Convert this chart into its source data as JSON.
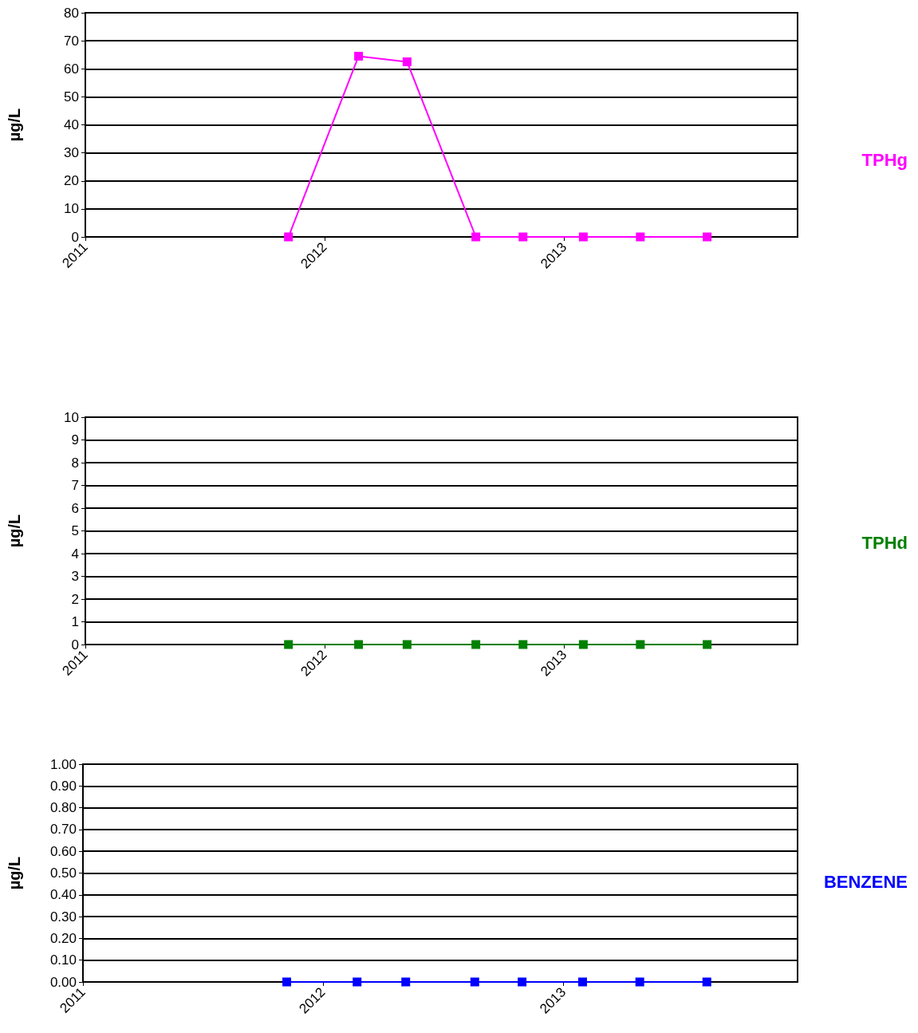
{
  "chart_data": [
    {
      "type": "line",
      "ylabel": "µg/L",
      "x": [
        "2011-11-07",
        "2012-02-22",
        "2012-05-06",
        "2012-08-19",
        "2012-10-30",
        "2013-01-30",
        "2013-04-27",
        "2013-08-07"
      ],
      "series": [
        {
          "name": "TPHg",
          "color": "#ff00ff",
          "values": [
            0,
            64.5,
            62.5,
            0,
            0,
            0,
            0,
            0
          ]
        }
      ],
      "xlim": [
        "2011-01-01",
        "2013-12-23"
      ],
      "xticks": [
        {
          "value": "2011",
          "label": "2011"
        },
        {
          "value": "2012",
          "label": "2012"
        },
        {
          "value": "2013",
          "label": "2013"
        }
      ],
      "ylim": [
        0,
        80
      ],
      "yticks": [
        0,
        10,
        20,
        30,
        40,
        50,
        60,
        70,
        80
      ],
      "grid": "y",
      "legend": "right",
      "marker": "square",
      "line_style": "solid"
    },
    {
      "type": "line",
      "ylabel": "µg/L",
      "x": [
        "2011-11-07",
        "2012-02-22",
        "2012-05-06",
        "2012-08-19",
        "2012-10-30",
        "2013-01-30",
        "2013-04-27",
        "2013-08-07"
      ],
      "series": [
        {
          "name": "TPHd",
          "color": "#008000",
          "values": [
            0,
            0,
            0,
            0,
            0,
            0,
            0,
            0
          ]
        }
      ],
      "xlim": [
        "2011-01-01",
        "2013-12-23"
      ],
      "xticks": [
        {
          "value": "2011",
          "label": "2011"
        },
        {
          "value": "2012",
          "label": "2012"
        },
        {
          "value": "2013",
          "label": "2013"
        }
      ],
      "ylim": [
        0,
        10
      ],
      "yticks": [
        0,
        1,
        2,
        3,
        4,
        5,
        6,
        7,
        8,
        9,
        10
      ],
      "grid": "y",
      "legend": "right",
      "marker": "square",
      "line_style": "solid"
    },
    {
      "type": "line",
      "ylabel": "µg/L",
      "x": [
        "2011-11-07",
        "2012-02-22",
        "2012-05-06",
        "2012-08-19",
        "2012-10-30",
        "2013-01-30",
        "2013-04-27",
        "2013-08-07"
      ],
      "series": [
        {
          "name": "BENZENE",
          "color": "#0000ff",
          "values": [
            0,
            0,
            0,
            0,
            0,
            0,
            0,
            0
          ]
        }
      ],
      "xlim": [
        "2011-01-01",
        "2013-12-23"
      ],
      "xticks": [
        {
          "value": "2011",
          "label": "2011"
        },
        {
          "value": "2012",
          "label": "2012"
        },
        {
          "value": "2013",
          "label": "2013"
        }
      ],
      "ylim": [
        0,
        1
      ],
      "yticks": [
        {
          "value": 0,
          "label": "0.00"
        },
        {
          "value": 0.1,
          "label": "0.10"
        },
        {
          "value": 0.2,
          "label": "0.20"
        },
        {
          "value": 0.3,
          "label": "0.30"
        },
        {
          "value": 0.4,
          "label": "0.40"
        },
        {
          "value": 0.5,
          "label": "0.50"
        },
        {
          "value": 0.6,
          "label": "0.60"
        },
        {
          "value": 0.7,
          "label": "0.70"
        },
        {
          "value": 0.8,
          "label": "0.80"
        },
        {
          "value": 0.9,
          "label": "0.90"
        },
        {
          "value": 1,
          "label": "1.00"
        }
      ],
      "grid": "y",
      "legend": "right",
      "marker": "square",
      "line_style": "solid"
    }
  ]
}
